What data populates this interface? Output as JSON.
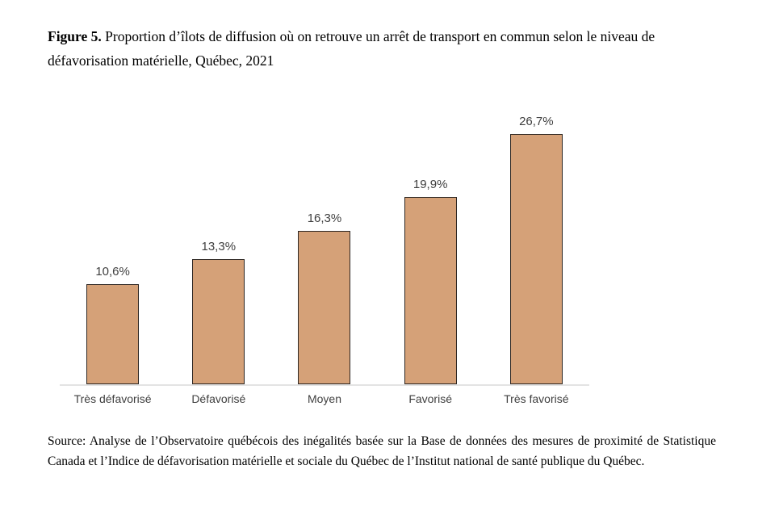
{
  "page": {
    "background": "#ffffff"
  },
  "title": {
    "label": "Figure 5.",
    "text": "Proportion d’îlots de diffusion où on retrouve un arrêt de transport en commun selon le niveau de défavorisation matérielle, Québec, 2021"
  },
  "source": {
    "text": "Source: Analyse de l’Observatoire québécois des inégalités basée sur la Base de données des mesures de proximité de Statistique Canada et l’Indice de défavorisation matérielle et sociale du Québec de l’Institut national de santé publique du Québec."
  },
  "chart_data": {
    "type": "bar",
    "categories": [
      "Très défavorisé",
      "Défavorisé",
      "Moyen",
      "Favorisé",
      "Très favorisé"
    ],
    "values": [
      10.6,
      13.3,
      16.3,
      19.9,
      26.7
    ],
    "value_labels": [
      "10,6%",
      "13,3%",
      "16,3%",
      "19,9%",
      "26,7%"
    ],
    "title": "Proportion d’îlots de diffusion où on retrouve un arrêt de transport en commun selon le niveau de défavorisation matérielle, Québec, 2021",
    "xlabel": "",
    "ylabel": "",
    "ylim": [
      0,
      30
    ],
    "grid": false,
    "legend": "none",
    "data_labels": true,
    "colors": {
      "bar_fill": "#d5a178",
      "bar_border": "#2e2723",
      "axis_line": "#e3e3e3",
      "label_text": "#3f3f3f"
    }
  }
}
